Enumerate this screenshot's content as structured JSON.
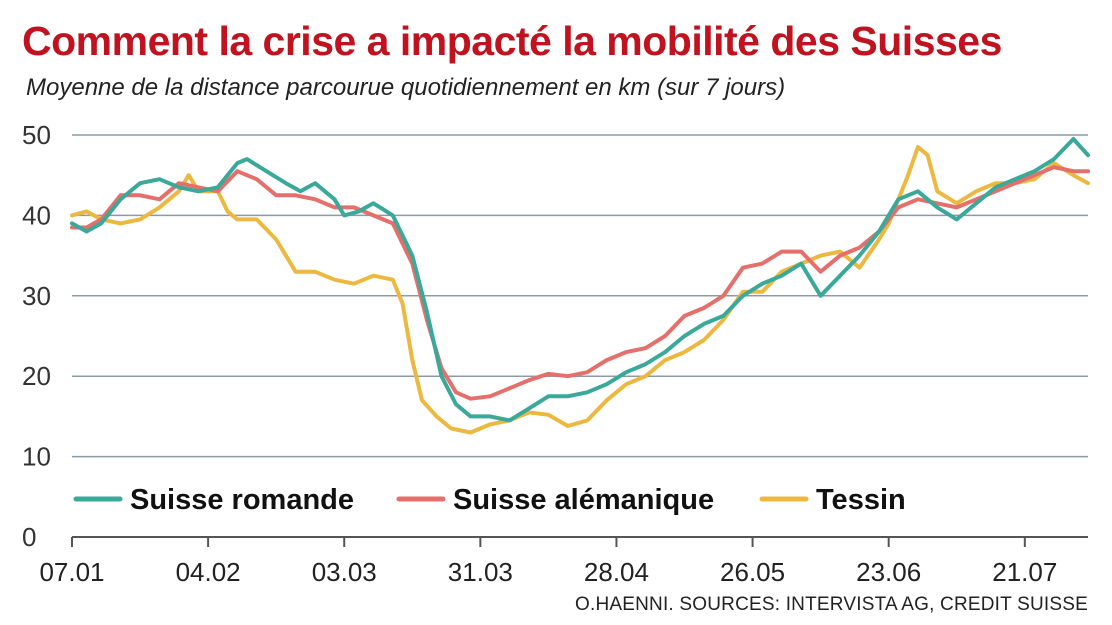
{
  "colors": {
    "title": "#c0121f",
    "grid": "#8c9aa3",
    "axis": "#555555"
  },
  "chart_data": {
    "type": "line",
    "title": "Comment la crise a impacté la mobilité des Suisses",
    "subtitle": "Moyenne de la distance parcourue quotidiennement en km (sur 7 jours)",
    "source": "O.HAENNI. SOURCES: INTERVISTA AG, CREDIT SUISSE",
    "x_tick_labels": [
      "07.01",
      "04.02",
      "03.03",
      "31.03",
      "28.04",
      "26.05",
      "23.06",
      "21.07"
    ],
    "x_ticks_day": [
      0,
      28,
      56,
      84,
      112,
      140,
      168,
      196
    ],
    "x_range_day": [
      0,
      209
    ],
    "y_ticks": [
      0,
      10,
      20,
      30,
      40,
      50
    ],
    "ylim": [
      0,
      50
    ],
    "grid": "horizontal",
    "legend_position": "bottom-left",
    "series": [
      {
        "name": "Suisse romande",
        "color": "#3aa99a",
        "points": [
          [
            0,
            39
          ],
          [
            3,
            38
          ],
          [
            6,
            39
          ],
          [
            10,
            42
          ],
          [
            14,
            44
          ],
          [
            18,
            44.5
          ],
          [
            22,
            43.5
          ],
          [
            26,
            43
          ],
          [
            30,
            43.5
          ],
          [
            34,
            46.5
          ],
          [
            36,
            47
          ],
          [
            40,
            45.5
          ],
          [
            44,
            44
          ],
          [
            47,
            43
          ],
          [
            50,
            44
          ],
          [
            54,
            42
          ],
          [
            56,
            40
          ],
          [
            59,
            40.5
          ],
          [
            62,
            41.5
          ],
          [
            66,
            40
          ],
          [
            70,
            35
          ],
          [
            73,
            28
          ],
          [
            76,
            20
          ],
          [
            79,
            16.5
          ],
          [
            82,
            15
          ],
          [
            86,
            15
          ],
          [
            90,
            14.5
          ],
          [
            94,
            16
          ],
          [
            98,
            17.5
          ],
          [
            102,
            17.5
          ],
          [
            106,
            18
          ],
          [
            110,
            19
          ],
          [
            114,
            20.5
          ],
          [
            118,
            21.5
          ],
          [
            122,
            23
          ],
          [
            126,
            25
          ],
          [
            130,
            26.5
          ],
          [
            134,
            27.5
          ],
          [
            138,
            30
          ],
          [
            142,
            31.5
          ],
          [
            146,
            32.5
          ],
          [
            150,
            34
          ],
          [
            154,
            30
          ],
          [
            158,
            32.5
          ],
          [
            162,
            35
          ],
          [
            166,
            38
          ],
          [
            170,
            42
          ],
          [
            174,
            43
          ],
          [
            178,
            41
          ],
          [
            182,
            39.5
          ],
          [
            186,
            41.5
          ],
          [
            190,
            43.5
          ],
          [
            194,
            44.5
          ],
          [
            198,
            45.5
          ],
          [
            202,
            47
          ],
          [
            206,
            49.5
          ],
          [
            209,
            47.5
          ]
        ]
      },
      {
        "name": "Suisse alémanique",
        "color": "#e46f6b",
        "points": [
          [
            0,
            38.5
          ],
          [
            3,
            38.5
          ],
          [
            6,
            39.5
          ],
          [
            10,
            42.5
          ],
          [
            14,
            42.5
          ],
          [
            18,
            42
          ],
          [
            22,
            44
          ],
          [
            26,
            43.5
          ],
          [
            30,
            43
          ],
          [
            34,
            45.5
          ],
          [
            38,
            44.5
          ],
          [
            42,
            42.5
          ],
          [
            46,
            42.5
          ],
          [
            50,
            42
          ],
          [
            54,
            41
          ],
          [
            58,
            41
          ],
          [
            62,
            40
          ],
          [
            66,
            39
          ],
          [
            70,
            34
          ],
          [
            73,
            27
          ],
          [
            76,
            21
          ],
          [
            79,
            18
          ],
          [
            82,
            17.2
          ],
          [
            86,
            17.5
          ],
          [
            90,
            18.5
          ],
          [
            94,
            19.5
          ],
          [
            98,
            20.3
          ],
          [
            102,
            20
          ],
          [
            106,
            20.5
          ],
          [
            110,
            22
          ],
          [
            114,
            23
          ],
          [
            118,
            23.5
          ],
          [
            122,
            25
          ],
          [
            126,
            27.5
          ],
          [
            130,
            28.5
          ],
          [
            134,
            30
          ],
          [
            138,
            33.5
          ],
          [
            142,
            34
          ],
          [
            146,
            35.5
          ],
          [
            150,
            35.5
          ],
          [
            154,
            33
          ],
          [
            158,
            35
          ],
          [
            162,
            36
          ],
          [
            166,
            38
          ],
          [
            170,
            41
          ],
          [
            174,
            42
          ],
          [
            178,
            41.5
          ],
          [
            182,
            41
          ],
          [
            186,
            42
          ],
          [
            190,
            43
          ],
          [
            194,
            44
          ],
          [
            198,
            45
          ],
          [
            202,
            46
          ],
          [
            206,
            45.5
          ],
          [
            209,
            45.5
          ]
        ]
      },
      {
        "name": "Tessin",
        "color": "#edb83f",
        "points": [
          [
            0,
            40
          ],
          [
            3,
            40.5
          ],
          [
            6,
            39.5
          ],
          [
            10,
            39
          ],
          [
            14,
            39.5
          ],
          [
            18,
            41
          ],
          [
            22,
            43
          ],
          [
            24,
            45
          ],
          [
            26,
            43
          ],
          [
            30,
            43
          ],
          [
            32,
            40.5
          ],
          [
            34,
            39.5
          ],
          [
            38,
            39.5
          ],
          [
            42,
            37
          ],
          [
            46,
            33
          ],
          [
            50,
            33
          ],
          [
            54,
            32
          ],
          [
            58,
            31.5
          ],
          [
            62,
            32.5
          ],
          [
            66,
            32
          ],
          [
            68,
            29
          ],
          [
            70,
            22
          ],
          [
            72,
            17
          ],
          [
            75,
            15
          ],
          [
            78,
            13.5
          ],
          [
            82,
            13
          ],
          [
            86,
            14
          ],
          [
            90,
            14.5
          ],
          [
            94,
            15.5
          ],
          [
            98,
            15.2
          ],
          [
            102,
            13.8
          ],
          [
            106,
            14.5
          ],
          [
            110,
            17
          ],
          [
            114,
            19
          ],
          [
            118,
            20
          ],
          [
            122,
            22
          ],
          [
            126,
            23
          ],
          [
            130,
            24.5
          ],
          [
            134,
            27
          ],
          [
            138,
            30.5
          ],
          [
            142,
            30.5
          ],
          [
            146,
            33
          ],
          [
            150,
            34
          ],
          [
            154,
            35
          ],
          [
            158,
            35.5
          ],
          [
            162,
            33.5
          ],
          [
            166,
            37
          ],
          [
            168,
            39
          ],
          [
            170,
            42
          ],
          [
            172,
            45
          ],
          [
            174,
            48.5
          ],
          [
            176,
            47.5
          ],
          [
            178,
            43
          ],
          [
            182,
            41.5
          ],
          [
            186,
            43
          ],
          [
            190,
            44
          ],
          [
            194,
            44
          ],
          [
            198,
            44.5
          ],
          [
            202,
            46.5
          ],
          [
            206,
            45
          ],
          [
            209,
            44
          ]
        ]
      }
    ]
  }
}
